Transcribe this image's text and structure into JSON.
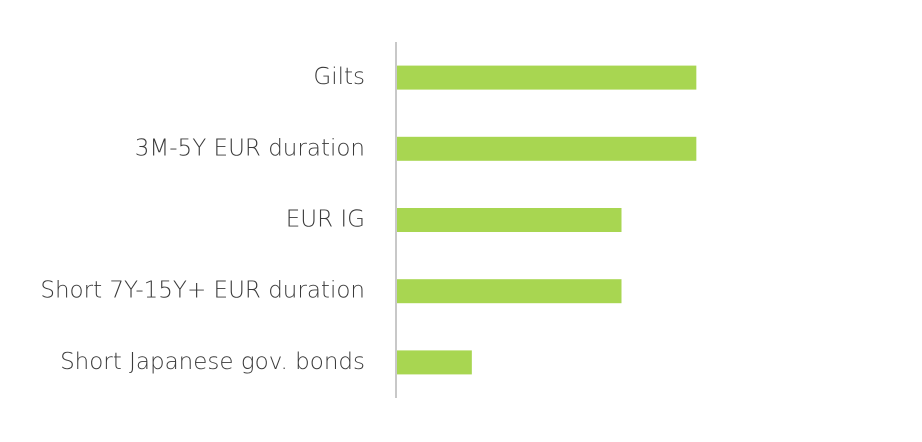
{
  "chart_data": {
    "type": "bar",
    "orientation": "horizontal",
    "categories": [
      "Gilts",
      "3M-5Y EUR duration",
      "EUR IG",
      "Short 7Y-15Y+ EUR duration",
      "Short Japanese gov. bonds"
    ],
    "values": [
      4,
      4,
      3,
      3,
      1
    ],
    "color": "#a8d651",
    "xlim": [
      0,
      6
    ]
  }
}
